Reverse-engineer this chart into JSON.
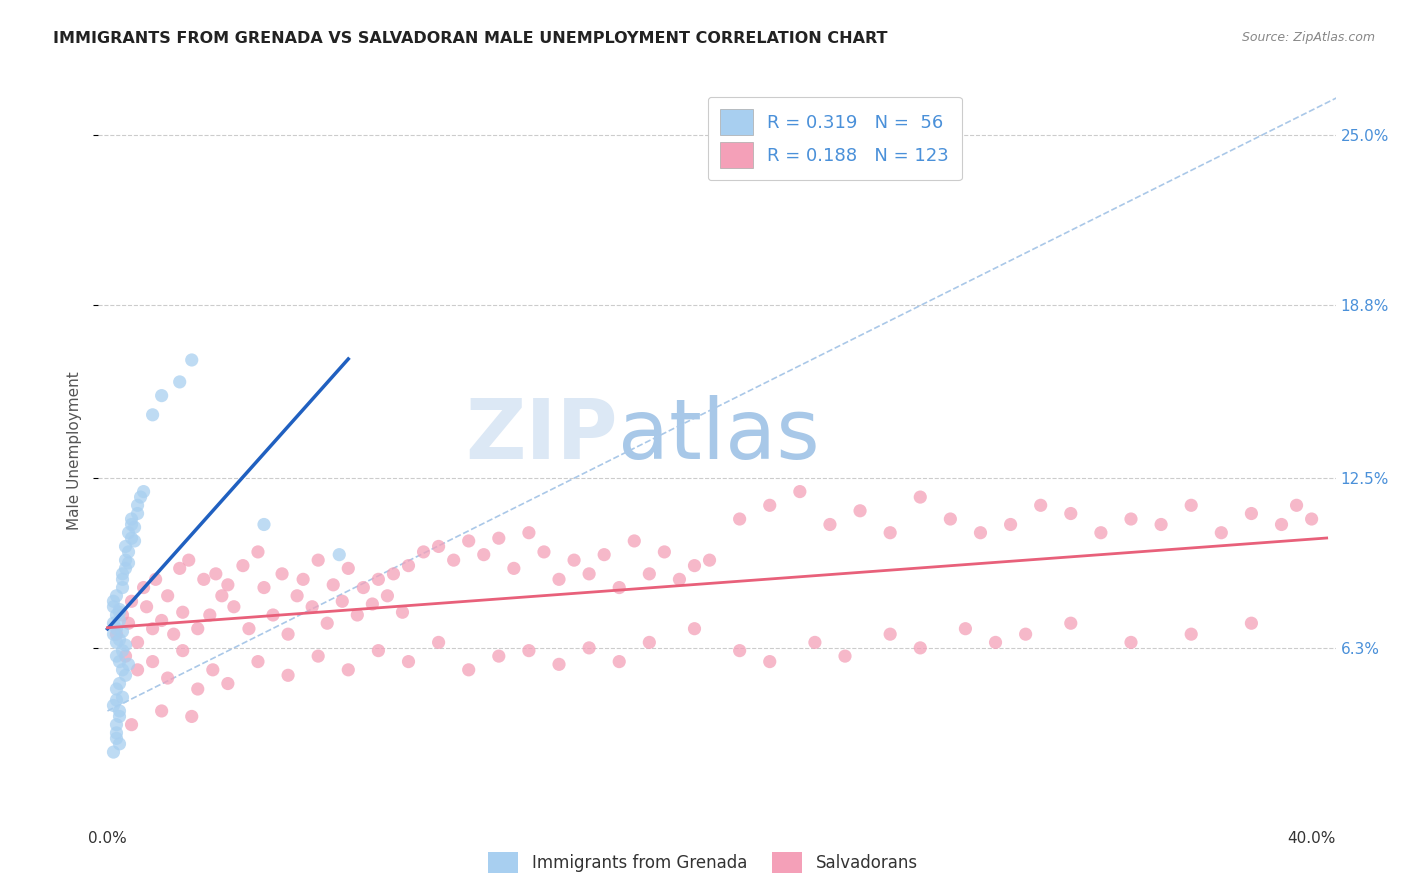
{
  "title": "IMMIGRANTS FROM GRENADA VS SALVADORAN MALE UNEMPLOYMENT CORRELATION CHART",
  "source": "Source: ZipAtlas.com",
  "ylabel": "Male Unemployment",
  "ytick_labels": [
    "6.3%",
    "12.5%",
    "18.8%",
    "25.0%"
  ],
  "ytick_values": [
    0.063,
    0.125,
    0.188,
    0.25
  ],
  "legend_label1": "Immigrants from Grenada",
  "legend_label2": "Salvadorans",
  "color_blue": "#a8cff0",
  "color_pink": "#f4a0b8",
  "color_blue_text": "#4a90d9",
  "trend_line_color_blue": "#2060c0",
  "trend_line_color_pink": "#e8607a",
  "diag_line_color": "#aac8e8",
  "background_color": "#ffffff",
  "watermark_color": "#dde8f5",
  "xlim_min": -0.003,
  "xlim_max": 0.408,
  "ylim_min": 0.0,
  "ylim_max": 0.27,
  "grenada_x": [
    0.002,
    0.002,
    0.003,
    0.002,
    0.003,
    0.002,
    0.003,
    0.004,
    0.003,
    0.004,
    0.005,
    0.004,
    0.005,
    0.005,
    0.006,
    0.005,
    0.006,
    0.007,
    0.006,
    0.007,
    0.007,
    0.008,
    0.008,
    0.008,
    0.009,
    0.009,
    0.01,
    0.01,
    0.011,
    0.012,
    0.003,
    0.004,
    0.005,
    0.006,
    0.004,
    0.005,
    0.006,
    0.007,
    0.003,
    0.004,
    0.002,
    0.003,
    0.004,
    0.005,
    0.003,
    0.004,
    0.003,
    0.002,
    0.004,
    0.003,
    0.024,
    0.028,
    0.018,
    0.015,
    0.052,
    0.077
  ],
  "grenada_y": [
    0.072,
    0.068,
    0.075,
    0.08,
    0.065,
    0.078,
    0.07,
    0.073,
    0.082,
    0.077,
    0.085,
    0.076,
    0.09,
    0.069,
    0.095,
    0.088,
    0.092,
    0.098,
    0.1,
    0.094,
    0.105,
    0.11,
    0.103,
    0.108,
    0.107,
    0.102,
    0.112,
    0.115,
    0.118,
    0.12,
    0.06,
    0.058,
    0.062,
    0.064,
    0.066,
    0.055,
    0.053,
    0.057,
    0.048,
    0.05,
    0.042,
    0.044,
    0.04,
    0.045,
    0.035,
    0.038,
    0.03,
    0.025,
    0.028,
    0.032,
    0.16,
    0.168,
    0.155,
    0.148,
    0.108,
    0.097
  ],
  "salvadoran_x": [
    0.003,
    0.005,
    0.007,
    0.008,
    0.01,
    0.012,
    0.013,
    0.015,
    0.016,
    0.018,
    0.02,
    0.022,
    0.024,
    0.025,
    0.027,
    0.03,
    0.032,
    0.034,
    0.036,
    0.038,
    0.04,
    0.042,
    0.045,
    0.047,
    0.05,
    0.052,
    0.055,
    0.058,
    0.06,
    0.063,
    0.065,
    0.068,
    0.07,
    0.073,
    0.075,
    0.078,
    0.08,
    0.083,
    0.085,
    0.088,
    0.09,
    0.093,
    0.095,
    0.098,
    0.1,
    0.105,
    0.11,
    0.115,
    0.12,
    0.125,
    0.13,
    0.135,
    0.14,
    0.145,
    0.15,
    0.155,
    0.16,
    0.165,
    0.17,
    0.175,
    0.18,
    0.185,
    0.19,
    0.195,
    0.2,
    0.21,
    0.22,
    0.23,
    0.24,
    0.25,
    0.26,
    0.27,
    0.28,
    0.29,
    0.3,
    0.31,
    0.32,
    0.33,
    0.34,
    0.35,
    0.36,
    0.37,
    0.38,
    0.39,
    0.395,
    0.4,
    0.006,
    0.01,
    0.015,
    0.02,
    0.025,
    0.03,
    0.035,
    0.04,
    0.05,
    0.06,
    0.07,
    0.08,
    0.09,
    0.1,
    0.11,
    0.12,
    0.13,
    0.14,
    0.15,
    0.16,
    0.17,
    0.18,
    0.195,
    0.21,
    0.22,
    0.235,
    0.245,
    0.26,
    0.27,
    0.285,
    0.295,
    0.305,
    0.32,
    0.34,
    0.36,
    0.38,
    0.008,
    0.018,
    0.028
  ],
  "salvadoran_y": [
    0.068,
    0.075,
    0.072,
    0.08,
    0.065,
    0.085,
    0.078,
    0.07,
    0.088,
    0.073,
    0.082,
    0.068,
    0.092,
    0.076,
    0.095,
    0.07,
    0.088,
    0.075,
    0.09,
    0.082,
    0.086,
    0.078,
    0.093,
    0.07,
    0.098,
    0.085,
    0.075,
    0.09,
    0.068,
    0.082,
    0.088,
    0.078,
    0.095,
    0.072,
    0.086,
    0.08,
    0.092,
    0.075,
    0.085,
    0.079,
    0.088,
    0.082,
    0.09,
    0.076,
    0.093,
    0.098,
    0.1,
    0.095,
    0.102,
    0.097,
    0.103,
    0.092,
    0.105,
    0.098,
    0.088,
    0.095,
    0.09,
    0.097,
    0.085,
    0.102,
    0.09,
    0.098,
    0.088,
    0.093,
    0.095,
    0.11,
    0.115,
    0.12,
    0.108,
    0.113,
    0.105,
    0.118,
    0.11,
    0.105,
    0.108,
    0.115,
    0.112,
    0.105,
    0.11,
    0.108,
    0.115,
    0.105,
    0.112,
    0.108,
    0.115,
    0.11,
    0.06,
    0.055,
    0.058,
    0.052,
    0.062,
    0.048,
    0.055,
    0.05,
    0.058,
    0.053,
    0.06,
    0.055,
    0.062,
    0.058,
    0.065,
    0.055,
    0.06,
    0.062,
    0.057,
    0.063,
    0.058,
    0.065,
    0.07,
    0.062,
    0.058,
    0.065,
    0.06,
    0.068,
    0.063,
    0.07,
    0.065,
    0.068,
    0.072,
    0.065,
    0.068,
    0.072,
    0.035,
    0.04,
    0.038
  ]
}
